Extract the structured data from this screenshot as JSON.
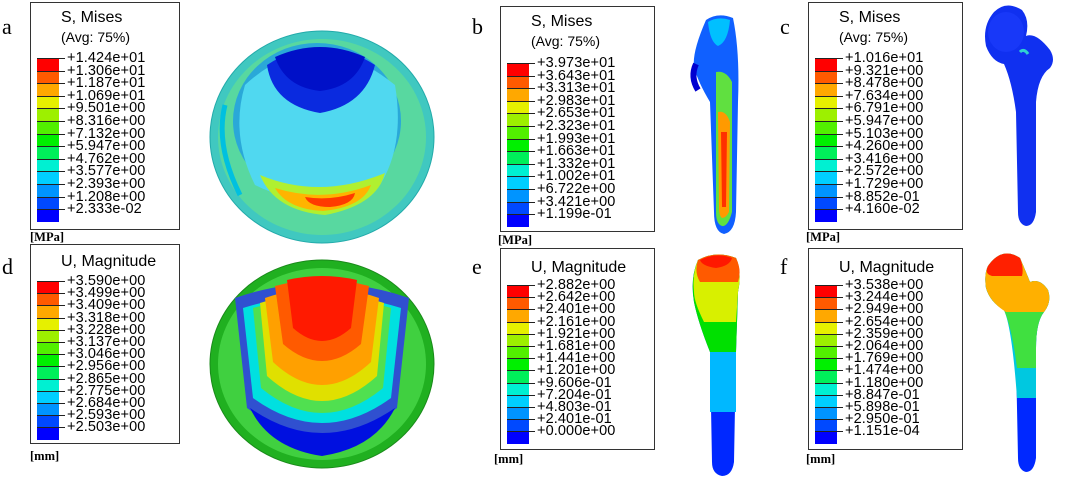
{
  "colors": [
    "#ff0000",
    "#ff5a00",
    "#ffa800",
    "#e6f000",
    "#9df000",
    "#52f000",
    "#00f000",
    "#00f05a",
    "#00f0d2",
    "#00cfff",
    "#0094ff",
    "#0049ff",
    "#0000ff"
  ],
  "panels": [
    {
      "letter": "a",
      "title1": "S, Mises",
      "title2": "(Avg: 75%)",
      "unit": "[MPa]",
      "values": [
        "+1.424e+01",
        "+1.306e+01",
        "+1.187e+01",
        "+1.069e+01",
        "+9.501e+00",
        "+8.316e+00",
        "+7.132e+00",
        "+5.947e+00",
        "+4.762e+00",
        "+3.577e+00",
        "+2.393e+00",
        "+1.208e+00",
        "+2.333e-02"
      ]
    },
    {
      "letter": "b",
      "title1": "S, Mises",
      "title2": "(Avg: 75%)",
      "unit": "[MPa]",
      "values": [
        "+3.973e+01",
        "+3.643e+01",
        "+3.313e+01",
        "+2.983e+01",
        "+2.653e+01",
        "+2.323e+01",
        "+1.993e+01",
        "+1.663e+01",
        "+1.332e+01",
        "+1.002e+01",
        "+6.722e+00",
        "+3.421e+00",
        "+1.199e-01"
      ]
    },
    {
      "letter": "c",
      "title1": "S, Mises",
      "title2": "(Avg: 75%)",
      "unit": "[MPa]",
      "values": [
        "+1.016e+01",
        "+9.321e+00",
        "+8.478e+00",
        "+7.634e+00",
        "+6.791e+00",
        "+5.947e+00",
        "+5.103e+00",
        "+4.260e+00",
        "+3.416e+00",
        "+2.572e+00",
        "+1.729e+00",
        "+8.852e-01",
        "+4.160e-02"
      ]
    },
    {
      "letter": "d",
      "title1": "U, Magnitude",
      "title2": "",
      "unit": "[mm]",
      "values": [
        "+3.590e+00",
        "+3.499e+00",
        "+3.409e+00",
        "+3.318e+00",
        "+3.228e+00",
        "+3.137e+00",
        "+3.046e+00",
        "+2.956e+00",
        "+2.865e+00",
        "+2.775e+00",
        "+2.684e+00",
        "+2.593e+00",
        "+2.503e+00"
      ]
    },
    {
      "letter": "e",
      "title1": "U, Magnitude",
      "title2": "",
      "unit": "[mm]",
      "values": [
        "+2.882e+00",
        "+2.642e+00",
        "+2.401e+00",
        "+2.161e+00",
        "+1.921e+00",
        "+1.681e+00",
        "+1.441e+00",
        "+1.201e+00",
        "+9.606e-01",
        "+7.204e-01",
        "+4.803e-01",
        "+2.401e-01",
        "+0.000e+00"
      ]
    },
    {
      "letter": "f",
      "title1": "U, Magnitude",
      "title2": "",
      "unit": "[mm]",
      "values": [
        "+3.538e+00",
        "+3.244e+00",
        "+2.949e+00",
        "+2.654e+00",
        "+2.359e+00",
        "+2.064e+00",
        "+1.769e+00",
        "+1.474e+00",
        "+1.180e+00",
        "+8.847e-01",
        "+5.898e-01",
        "+2.950e-01",
        "+1.151e-04"
      ]
    }
  ]
}
